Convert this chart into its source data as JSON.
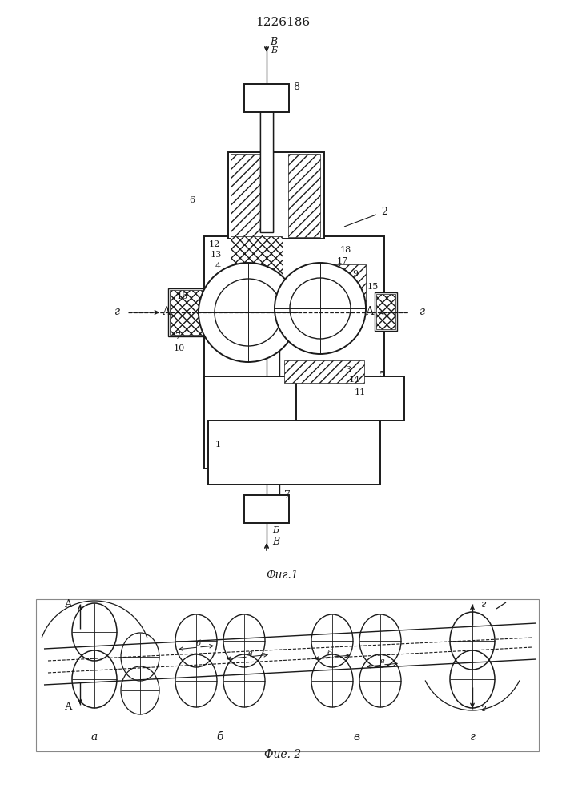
{
  "title": "1226186",
  "fig1_caption": "Фиг.1",
  "fig2_caption": "Фие. 2",
  "bg_color": "#ffffff",
  "lc": "#1a1a1a"
}
